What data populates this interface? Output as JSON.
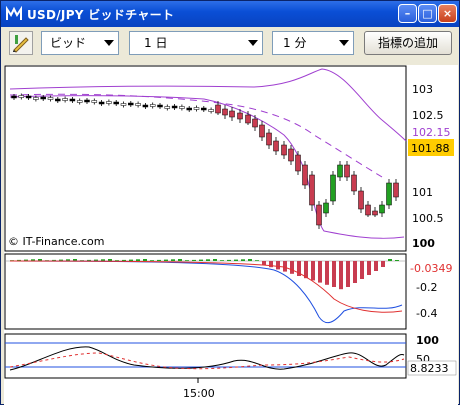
{
  "window": {
    "title": "USD/JPY ビッドチャート"
  },
  "toolbar": {
    "side": "ビッド",
    "period": "1 日",
    "interval": "1 分",
    "add_indicator": "指標の追加"
  },
  "chart": {
    "copyright": "© IT-Finance.com",
    "x_label": "15:00",
    "price_ticks": [
      "103",
      "102.5",
      "102.15",
      "101.88",
      "101",
      "100.5",
      "100"
    ],
    "macd_ticks": [
      "-0.0349",
      "-0.2",
      "-0.4"
    ],
    "osc_ticks": [
      "100",
      "50",
      "8.8233"
    ],
    "current_price": "101.88",
    "current_macd": "-0.0349",
    "current_osc": "8.8233",
    "colors": {
      "up": "#22a022",
      "down": "#c83c50",
      "band": "#a040d0",
      "accent_price": "#ffcc00",
      "macd_line": "#2050e0",
      "signal_line": "#e03030"
    }
  }
}
